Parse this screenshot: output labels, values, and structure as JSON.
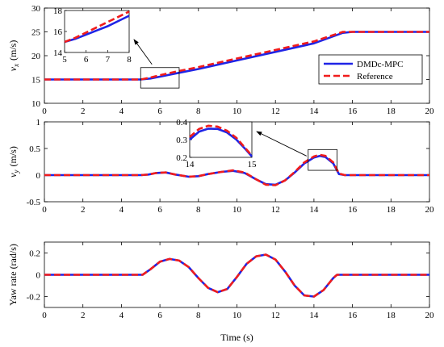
{
  "legend": {
    "items": [
      "DMDc-MPC",
      "Reference"
    ]
  },
  "colors": {
    "dmdc": "#1f24e6",
    "reference": "#f01c1c",
    "axis": "#000000"
  },
  "xlabel": "Time (s)",
  "x_ticks": [
    0,
    2,
    4,
    6,
    8,
    10,
    12,
    14,
    16,
    18,
    20
  ],
  "chart_data": [
    {
      "type": "line",
      "ylabel_main": "v",
      "ylabel_sub": "x",
      "ylabel_unit": "(m/s)",
      "xlim": [
        0,
        20
      ],
      "ylim": [
        10,
        30
      ],
      "yticks": [
        10,
        15,
        20,
        25,
        30
      ],
      "series": [
        {
          "name": "DMDc-MPC",
          "x": [
            0,
            5,
            5.5,
            6,
            7,
            8,
            10,
            12,
            14,
            15.5,
            16,
            20
          ],
          "y": [
            15,
            15,
            15.2,
            15.6,
            16.4,
            17.2,
            19.0,
            20.8,
            22.6,
            24.8,
            25,
            25
          ]
        },
        {
          "name": "Reference",
          "x": [
            0,
            5,
            5.5,
            6,
            7,
            8,
            10,
            12,
            14,
            15.5,
            16,
            20
          ],
          "y": [
            15,
            15,
            15.4,
            15.9,
            16.8,
            17.6,
            19.4,
            21.2,
            23.0,
            25,
            25,
            25
          ]
        }
      ],
      "inset": {
        "xlim": [
          5,
          8
        ],
        "ylim": [
          14,
          18
        ],
        "xticks": [
          5,
          6,
          7,
          8
        ],
        "yticks": [
          14,
          16,
          18
        ],
        "series": [
          {
            "name": "DMDc-MPC",
            "x": [
              5,
              5.5,
              6,
              6.5,
              7,
              7.5,
              8
            ],
            "y": [
              15.0,
              15.3,
              15.7,
              16.1,
              16.5,
              17.0,
              17.5
            ]
          },
          {
            "name": "Reference",
            "x": [
              5,
              5.5,
              6,
              6.5,
              7,
              7.5,
              8
            ],
            "y": [
              15.0,
              15.4,
              15.9,
              16.4,
              16.9,
              17.4,
              17.9
            ]
          }
        ]
      }
    },
    {
      "type": "line",
      "ylabel_main": "v",
      "ylabel_sub": "y",
      "ylabel_unit": "(m/s)",
      "xlim": [
        0,
        20
      ],
      "ylim": [
        -0.5,
        1
      ],
      "yticks": [
        -0.5,
        0,
        0.5,
        1
      ],
      "series": [
        {
          "name": "DMDc-MPC",
          "x": [
            0,
            5,
            5.4,
            5.8,
            6.3,
            6.8,
            7.5,
            8.0,
            8.5,
            9.2,
            9.8,
            10.4,
            11.0,
            11.5,
            12.0,
            12.5,
            13.0,
            13.5,
            14.0,
            14.3,
            14.6,
            15.0,
            15.3,
            15.6,
            20
          ],
          "y": [
            0,
            0,
            0.01,
            0.04,
            0.05,
            0.01,
            -0.03,
            -0.02,
            0.02,
            0.06,
            0.08,
            0.04,
            -0.08,
            -0.17,
            -0.18,
            -0.1,
            0.05,
            0.22,
            0.33,
            0.36,
            0.34,
            0.22,
            0.02,
            0,
            0
          ]
        },
        {
          "name": "Reference",
          "x": [
            0,
            5,
            5.4,
            5.8,
            6.3,
            6.8,
            7.5,
            8.0,
            8.5,
            9.2,
            9.8,
            10.4,
            11.0,
            11.5,
            12.0,
            12.5,
            13.0,
            13.5,
            14.0,
            14.3,
            14.6,
            15.0,
            15.3,
            15.6,
            20
          ],
          "y": [
            0,
            0,
            0.01,
            0.04,
            0.05,
            0.01,
            -0.03,
            -0.02,
            0.02,
            0.06,
            0.09,
            0.05,
            -0.08,
            -0.18,
            -0.19,
            -0.1,
            0.06,
            0.24,
            0.35,
            0.38,
            0.36,
            0.24,
            0.03,
            0,
            0
          ]
        }
      ],
      "inset": {
        "xlim": [
          14,
          15
        ],
        "ylim": [
          0.2,
          0.4
        ],
        "xticks": [
          14,
          15
        ],
        "yticks": [
          0.2,
          0.3,
          0.4
        ],
        "series": [
          {
            "name": "DMDc-MPC",
            "x": [
              14,
              14.15,
              14.3,
              14.45,
              14.6,
              14.75,
              14.9,
              15.0
            ],
            "y": [
              0.3,
              0.345,
              0.362,
              0.36,
              0.34,
              0.3,
              0.245,
              0.205
            ]
          },
          {
            "name": "Reference",
            "x": [
              14,
              14.15,
              14.3,
              14.45,
              14.6,
              14.75,
              14.9,
              15.0
            ],
            "y": [
              0.315,
              0.36,
              0.378,
              0.373,
              0.35,
              0.31,
              0.25,
              0.21
            ]
          }
        ]
      }
    },
    {
      "type": "line",
      "ylabel_main": "Yaw rate (rad/s)",
      "xlim": [
        0,
        20
      ],
      "ylim": [
        -0.3,
        0.3
      ],
      "yticks": [
        -0.2,
        0,
        0.2
      ],
      "series": [
        {
          "name": "DMDc-MPC",
          "x": [
            0,
            5.1,
            5.5,
            6.0,
            6.5,
            7.0,
            7.5,
            8.0,
            8.5,
            9.0,
            9.5,
            10.0,
            10.5,
            11.0,
            11.5,
            12.0,
            12.5,
            13.0,
            13.5,
            14.0,
            14.5,
            15.0,
            15.2,
            20
          ],
          "y": [
            0,
            0,
            0.05,
            0.12,
            0.145,
            0.13,
            0.07,
            -0.03,
            -0.12,
            -0.16,
            -0.13,
            -0.02,
            0.1,
            0.17,
            0.185,
            0.14,
            0.03,
            -0.1,
            -0.19,
            -0.2,
            -0.14,
            -0.03,
            0,
            0
          ]
        },
        {
          "name": "Reference",
          "x": [
            0,
            5.1,
            5.5,
            6.0,
            6.5,
            7.0,
            7.5,
            8.0,
            8.5,
            9.0,
            9.5,
            10.0,
            10.5,
            11.0,
            11.5,
            12.0,
            12.5,
            13.0,
            13.5,
            14.0,
            14.5,
            15.0,
            15.2,
            20
          ],
          "y": [
            0,
            0,
            0.05,
            0.12,
            0.145,
            0.13,
            0.07,
            -0.03,
            -0.12,
            -0.16,
            -0.13,
            -0.02,
            0.1,
            0.17,
            0.185,
            0.14,
            0.03,
            -0.1,
            -0.19,
            -0.2,
            -0.14,
            -0.03,
            0,
            0
          ]
        }
      ]
    }
  ]
}
